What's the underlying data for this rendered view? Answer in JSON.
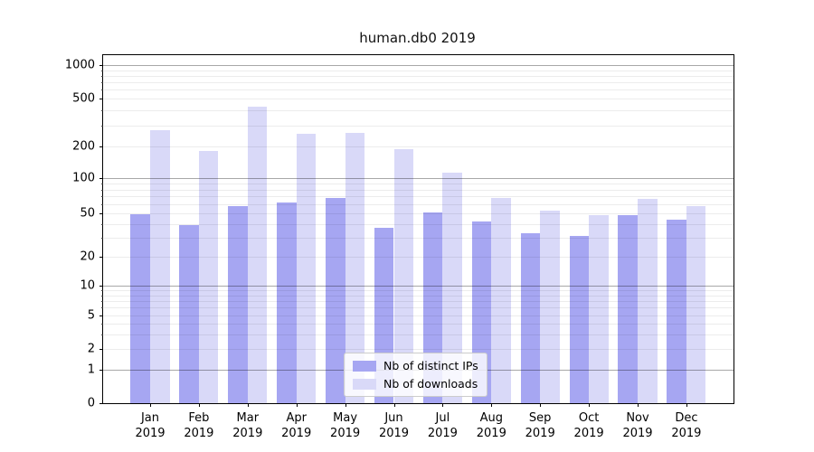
{
  "title": "human.db0 2019",
  "colors": {
    "ips": "#a6a6f2",
    "downloads": "#d9d9f8",
    "axis": "#000000",
    "background": "#ffffff"
  },
  "legend": {
    "items": [
      {
        "label": "Nb of distinct IPs",
        "series": "ips"
      },
      {
        "label": "Nb of downloads",
        "series": "downloads"
      }
    ]
  },
  "y_axis": {
    "tick_labels": [
      "0",
      "1",
      "2",
      "5",
      "10",
      "20",
      "50",
      "100",
      "200",
      "500",
      "1000"
    ]
  },
  "x_axis": {
    "months": [
      "Jan",
      "Feb",
      "Mar",
      "Apr",
      "May",
      "Jun",
      "Jul",
      "Aug",
      "Sep",
      "Oct",
      "Nov",
      "Dec"
    ],
    "year": "2019"
  },
  "chart_data": {
    "type": "bar",
    "title": "human.db0 2019",
    "categories": [
      "Jan 2019",
      "Feb 2019",
      "Mar 2019",
      "Apr 2019",
      "May 2019",
      "Jun 2019",
      "Jul 2019",
      "Aug 2019",
      "Sep 2019",
      "Oct 2019",
      "Nov 2019",
      "Dec 2019"
    ],
    "series": [
      {
        "name": "Nb of distinct IPs",
        "key": "ips",
        "values": [
          49,
          39,
          58,
          62,
          68,
          37,
          51,
          42,
          33,
          31,
          48,
          44
        ]
      },
      {
        "name": "Nb of downloads",
        "key": "downloads",
        "values": [
          272,
          183,
          425,
          255,
          260,
          190,
          113,
          68,
          53,
          48,
          66,
          58
        ]
      }
    ],
    "xlabel": "",
    "ylabel": "",
    "yscale": "symlog",
    "yticks": [
      0,
      1,
      2,
      5,
      10,
      20,
      50,
      100,
      200,
      500,
      1000
    ],
    "ylim": [
      0,
      1000
    ],
    "grid": true,
    "legend_position": "lower center"
  }
}
